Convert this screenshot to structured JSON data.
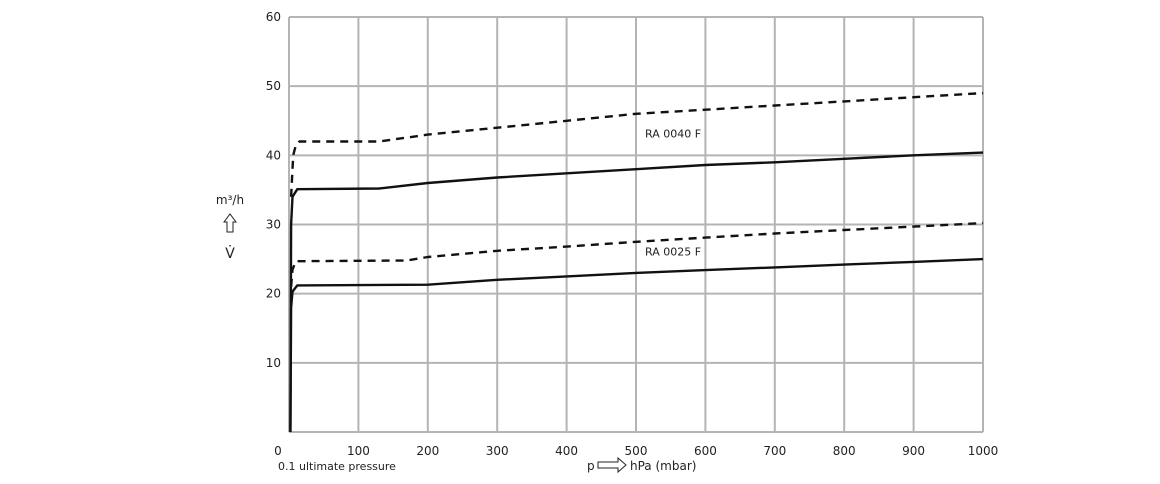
{
  "chart_data": {
    "type": "line",
    "title": "",
    "xlabel": "hPa (mbar)",
    "xlabel_prefix": "p",
    "x_note": "0.1 ultimate pressure",
    "ylabel_unit": "m³/h",
    "ylabel_symbol": "V̇",
    "xlim": [
      0,
      1000
    ],
    "ylim": [
      0,
      60
    ],
    "xticks": [
      0,
      100,
      200,
      300,
      400,
      500,
      600,
      700,
      800,
      900,
      1000
    ],
    "yticks": [
      10,
      20,
      30,
      40,
      50,
      60
    ],
    "grid": true,
    "colors": {
      "grid": "#b4b4b4",
      "line": "#111111"
    },
    "series": [
      {
        "id": "ra0040-dashed",
        "style": "dashed",
        "points": [
          [
            3,
            34
          ],
          [
            6,
            40
          ],
          [
            10,
            41.5
          ],
          [
            15,
            42
          ],
          [
            130,
            42
          ],
          [
            200,
            43
          ],
          [
            300,
            44
          ],
          [
            400,
            45
          ],
          [
            500,
            46
          ],
          [
            600,
            46.6
          ],
          [
            700,
            47.2
          ],
          [
            800,
            47.8
          ],
          [
            900,
            48.4
          ],
          [
            1000,
            49
          ]
        ]
      },
      {
        "id": "ra0040-solid",
        "style": "solid",
        "points": [
          [
            2,
            0
          ],
          [
            3,
            30
          ],
          [
            5,
            34
          ],
          [
            12,
            35.1
          ],
          [
            130,
            35.2
          ],
          [
            200,
            36
          ],
          [
            300,
            36.8
          ],
          [
            400,
            37.4
          ],
          [
            500,
            38
          ],
          [
            600,
            38.6
          ],
          [
            700,
            39
          ],
          [
            800,
            39.5
          ],
          [
            900,
            40
          ],
          [
            1000,
            40.4
          ]
        ]
      },
      {
        "id": "ra0025-dashed",
        "style": "dashed",
        "points": [
          [
            3,
            21
          ],
          [
            5,
            23.5
          ],
          [
            10,
            24.7
          ],
          [
            170,
            24.8
          ],
          [
            200,
            25.3
          ],
          [
            300,
            26.2
          ],
          [
            400,
            26.8
          ],
          [
            500,
            27.5
          ],
          [
            600,
            28.1
          ],
          [
            700,
            28.7
          ],
          [
            800,
            29.2
          ],
          [
            900,
            29.7
          ],
          [
            1000,
            30.2
          ]
        ]
      },
      {
        "id": "ra0025-solid",
        "style": "solid",
        "points": [
          [
            2,
            0
          ],
          [
            3,
            18
          ],
          [
            5,
            20.3
          ],
          [
            12,
            21.2
          ],
          [
            200,
            21.3
          ],
          [
            300,
            22
          ],
          [
            400,
            22.5
          ],
          [
            500,
            23
          ],
          [
            600,
            23.4
          ],
          [
            700,
            23.8
          ],
          [
            800,
            24.2
          ],
          [
            900,
            24.6
          ],
          [
            1000,
            25
          ]
        ]
      }
    ],
    "annotations": [
      {
        "text": "RA 0040 F",
        "x": 513,
        "y": 42.6
      },
      {
        "text": "RA 0025 F",
        "x": 513,
        "y": 25.5
      }
    ]
  }
}
